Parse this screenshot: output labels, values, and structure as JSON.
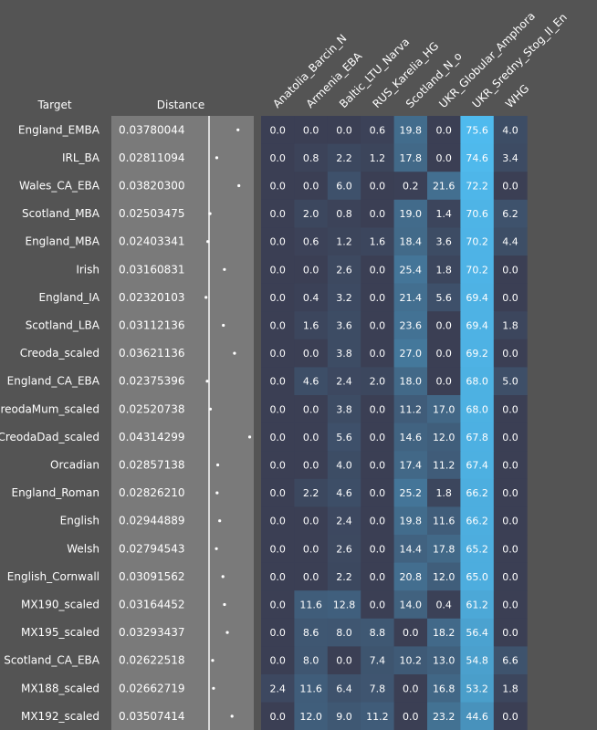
{
  "chart_data": {
    "type": "heatmap",
    "header": {
      "target": "Target",
      "distance": "Distance"
    },
    "columns": [
      "Anatolia_Barcin_N",
      "Armenia_EBA",
      "Baltic_LTU_Narva",
      "RUS_Karelia_HG",
      "Scotland_N_o",
      "UKR_Globular_Amphora",
      "UKR_Sredny_Stog_II_En",
      "WHG"
    ],
    "distance_range": [
      0,
      0.05
    ],
    "color_range": [
      0,
      75.6
    ],
    "colors": {
      "low": "#3b3f54",
      "high": "#4fbaee",
      "distance_bg": "#7a7a7a",
      "page_bg": "#545454"
    },
    "rows": [
      {
        "target": "England_EMBA",
        "distance": "0.03780044",
        "distance_value": 0.03780044,
        "values": [
          0.0,
          0.0,
          0.0,
          0.6,
          19.8,
          0.0,
          75.6,
          4.0
        ]
      },
      {
        "target": "IRL_BA",
        "distance": "0.02811094",
        "distance_value": 0.02811094,
        "values": [
          0.0,
          0.8,
          2.2,
          1.2,
          17.8,
          0.0,
          74.6,
          3.4
        ]
      },
      {
        "target": "Wales_CA_EBA",
        "distance": "0.03820300",
        "distance_value": 0.038203,
        "values": [
          0.0,
          0.0,
          6.0,
          0.0,
          0.2,
          21.6,
          72.2,
          0.0
        ]
      },
      {
        "target": "Scotland_MBA",
        "distance": "0.02503475",
        "distance_value": 0.02503475,
        "values": [
          0.0,
          2.0,
          0.8,
          0.0,
          19.0,
          1.4,
          70.6,
          6.2
        ]
      },
      {
        "target": "England_MBA",
        "distance": "0.02403341",
        "distance_value": 0.02403341,
        "values": [
          0.0,
          0.6,
          1.2,
          1.6,
          18.4,
          3.6,
          70.2,
          4.4
        ]
      },
      {
        "target": "Irish",
        "distance": "0.03160831",
        "distance_value": 0.03160831,
        "values": [
          0.0,
          0.0,
          2.6,
          0.0,
          25.4,
          1.8,
          70.2,
          0.0
        ]
      },
      {
        "target": "England_IA",
        "distance": "0.02320103",
        "distance_value": 0.02320103,
        "values": [
          0.0,
          0.4,
          3.2,
          0.0,
          21.4,
          5.6,
          69.4,
          0.0
        ]
      },
      {
        "target": "Scotland_LBA",
        "distance": "0.03112136",
        "distance_value": 0.03112136,
        "values": [
          0.0,
          1.6,
          3.6,
          0.0,
          23.6,
          0.0,
          69.4,
          1.8
        ]
      },
      {
        "target": "Creoda_scaled",
        "distance": "0.03621136",
        "distance_value": 0.03621136,
        "values": [
          0.0,
          0.0,
          3.8,
          0.0,
          27.0,
          0.0,
          69.2,
          0.0
        ]
      },
      {
        "target": "England_CA_EBA",
        "distance": "0.02375396",
        "distance_value": 0.02375396,
        "values": [
          0.0,
          4.6,
          2.4,
          2.0,
          18.0,
          0.0,
          68.0,
          5.0
        ]
      },
      {
        "target": "CreodaMum_scaled",
        "distance": "0.02520738",
        "distance_value": 0.02520738,
        "values": [
          0.0,
          0.0,
          3.8,
          0.0,
          11.2,
          17.0,
          68.0,
          0.0
        ]
      },
      {
        "target": "CreodaDad_scaled",
        "distance": "0.04314299",
        "distance_value": 0.04314299,
        "values": [
          0.0,
          0.0,
          5.6,
          0.0,
          14.6,
          12.0,
          67.8,
          0.0
        ]
      },
      {
        "target": "Orcadian",
        "distance": "0.02857138",
        "distance_value": 0.02857138,
        "values": [
          0.0,
          0.0,
          4.0,
          0.0,
          17.4,
          11.2,
          67.4,
          0.0
        ]
      },
      {
        "target": "England_Roman",
        "distance": "0.02826210",
        "distance_value": 0.0282621,
        "values": [
          0.0,
          2.2,
          4.6,
          0.0,
          25.2,
          1.8,
          66.2,
          0.0
        ]
      },
      {
        "target": "English",
        "distance": "0.02944889",
        "distance_value": 0.02944889,
        "values": [
          0.0,
          0.0,
          2.4,
          0.0,
          19.8,
          11.6,
          66.2,
          0.0
        ]
      },
      {
        "target": "Welsh",
        "distance": "0.02794543",
        "distance_value": 0.02794543,
        "values": [
          0.0,
          0.0,
          2.6,
          0.0,
          14.4,
          17.8,
          65.2,
          0.0
        ]
      },
      {
        "target": "English_Cornwall",
        "distance": "0.03091562",
        "distance_value": 0.03091562,
        "values": [
          0.0,
          0.0,
          2.2,
          0.0,
          20.8,
          12.0,
          65.0,
          0.0
        ]
      },
      {
        "target": "MX190_scaled",
        "distance": "0.03164452",
        "distance_value": 0.03164452,
        "values": [
          0.0,
          11.6,
          12.8,
          0.0,
          14.0,
          0.4,
          61.2,
          0.0
        ]
      },
      {
        "target": "MX195_scaled",
        "distance": "0.03293437",
        "distance_value": 0.03293437,
        "values": [
          0.0,
          8.6,
          8.0,
          8.8,
          0.0,
          18.2,
          56.4,
          0.0
        ]
      },
      {
        "target": "Scotland_CA_EBA",
        "distance": "0.02622518",
        "distance_value": 0.02622518,
        "values": [
          0.0,
          8.0,
          0.0,
          7.4,
          10.2,
          13.0,
          54.8,
          6.6
        ]
      },
      {
        "target": "MX188_scaled",
        "distance": "0.02662719",
        "distance_value": 0.02662719,
        "values": [
          2.4,
          11.6,
          6.4,
          7.8,
          0.0,
          16.8,
          53.2,
          1.8
        ]
      },
      {
        "target": "MX192_scaled",
        "distance": "0.03507414",
        "distance_value": 0.03507414,
        "values": [
          0.0,
          12.0,
          9.0,
          11.2,
          0.0,
          23.2,
          44.6,
          0.0
        ]
      }
    ]
  }
}
